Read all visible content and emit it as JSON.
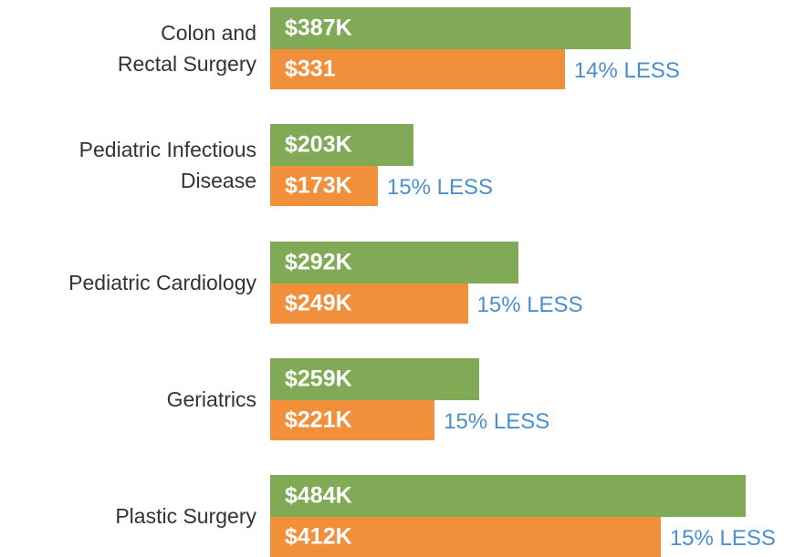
{
  "chart_data": {
    "type": "bar",
    "orientation": "horizontal",
    "categories": [
      "Colon and\nRectal Surgery",
      "Pediatric Infectious\nDisease",
      "Pediatric Cardiology",
      "Geriatrics",
      "Plastic Surgery"
    ],
    "series": [
      {
        "color": "#80aa55",
        "values": [
          387,
          203,
          292,
          259,
          484
        ],
        "value_labels": [
          "$387K",
          "$203K",
          "$292K",
          "$259K",
          "$484K"
        ]
      },
      {
        "color": "#f28f3b",
        "values": [
          331,
          173,
          249,
          221,
          412
        ],
        "value_labels": [
          "$331",
          "$173K",
          "$249K",
          "$221K",
          "$412K"
        ]
      }
    ],
    "annotations": [
      "14% LESS",
      "15% LESS",
      "15% LESS",
      "15% LESS",
      "15% LESS"
    ],
    "annotation_color": "#4a8fcf",
    "xlim": [
      82,
      534
    ]
  }
}
